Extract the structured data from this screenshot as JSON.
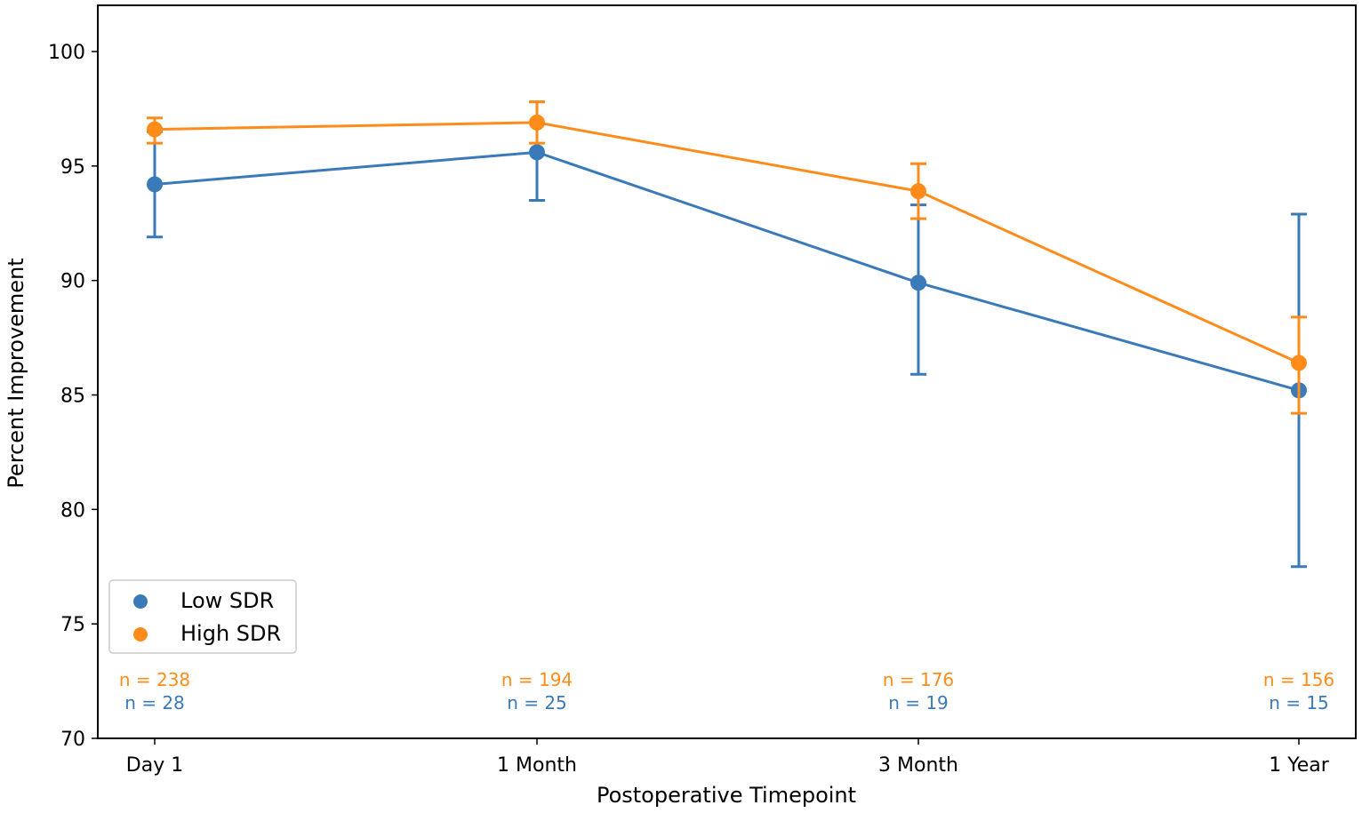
{
  "chart_data": {
    "type": "line",
    "title": "",
    "xlabel": "Postoperative Timepoint",
    "ylabel": "Percent Improvement",
    "categories": [
      "Day 1",
      "1 Month",
      "3 Month",
      "1 Year"
    ],
    "ylim": [
      70,
      102
    ],
    "yticks": [
      70,
      75,
      80,
      85,
      90,
      95,
      100
    ],
    "grid": false,
    "legend_position": "lower-left",
    "series": [
      {
        "name": "Low SDR",
        "color": "#3b7ab8",
        "values": [
          94.2,
          95.6,
          89.9,
          85.2
        ],
        "err_low": [
          91.9,
          93.5,
          85.9,
          77.5
        ],
        "err_high": [
          96.5,
          97.8,
          93.3,
          92.9
        ],
        "n_labels": [
          "n = 28",
          "n = 25",
          "n = 19",
          "n = 15"
        ]
      },
      {
        "name": "High SDR",
        "color": "#ff8c1a",
        "values": [
          96.6,
          96.9,
          93.9,
          86.4
        ],
        "err_low": [
          96.0,
          96.0,
          92.7,
          84.2
        ],
        "err_high": [
          97.1,
          97.8,
          95.1,
          88.4
        ],
        "n_labels": [
          "n = 238",
          "n = 194",
          "n = 176",
          "n = 156"
        ]
      }
    ]
  }
}
